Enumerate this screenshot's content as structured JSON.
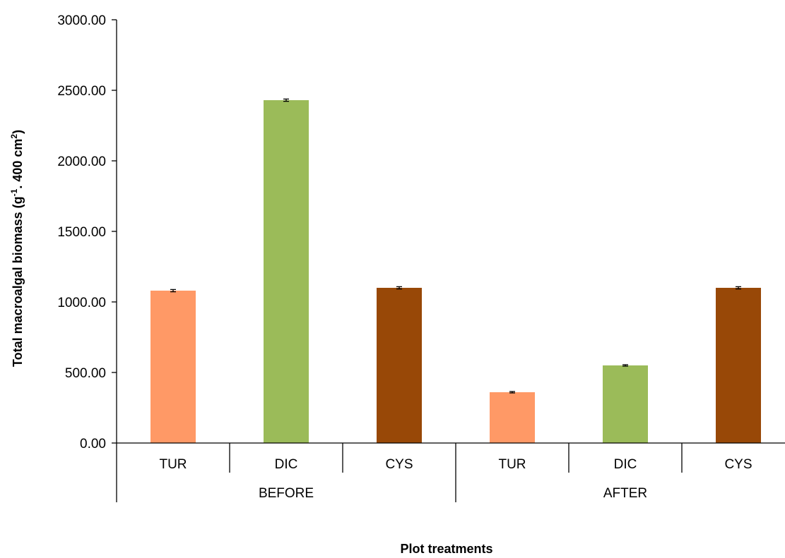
{
  "chart_data": {
    "type": "bar",
    "ylabel": "Total macroalgal biomass (g",
    "ylabel_sup1": "-1",
    "ylabel_mid": ". 400 cm",
    "ylabel_sup2": "2",
    "ylabel_end": ")",
    "xlabel": "Plot treatments",
    "ylim": [
      0,
      3000
    ],
    "yticks": [
      "0.00",
      "500.00",
      "1000.00",
      "1500.00",
      "2000.00",
      "2500.00",
      "3000.00"
    ],
    "ytick_values": [
      0,
      500,
      1000,
      1500,
      2000,
      2500,
      3000
    ],
    "groups": [
      {
        "name": "BEFORE",
        "categories": [
          "TUR",
          "DIC",
          "CYS"
        ],
        "values": [
          1080,
          2430,
          1100
        ],
        "errors": [
          8,
          8,
          8
        ]
      },
      {
        "name": "AFTER",
        "categories": [
          "TUR",
          "DIC",
          "CYS"
        ],
        "values": [
          360,
          550,
          1100
        ],
        "errors": [
          5,
          5,
          8
        ]
      }
    ],
    "colors": {
      "TUR": "#FF9966",
      "DIC": "#9BBB59",
      "CYS": "#984807"
    },
    "grid": false,
    "legend": "none"
  }
}
